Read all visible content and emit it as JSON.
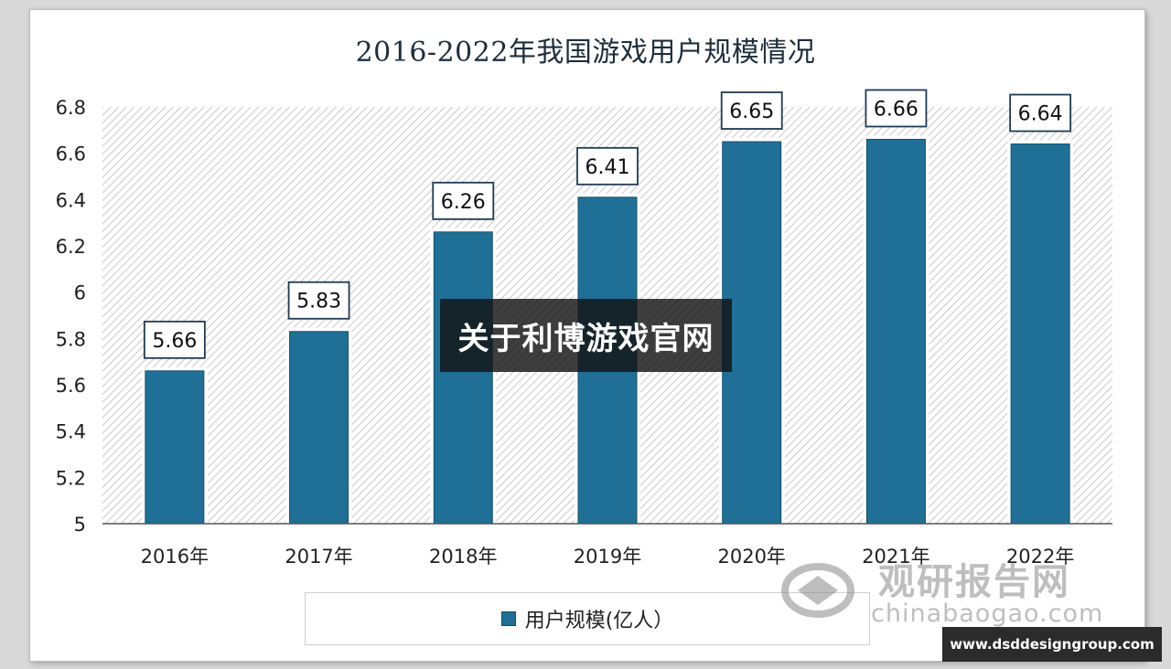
{
  "chart_data": {
    "type": "bar",
    "title": "2016-2022年我国游戏用户规模情况",
    "categories": [
      "2016年",
      "2017年",
      "2018年",
      "2019年",
      "2020年",
      "2021年",
      "2022年"
    ],
    "series": [
      {
        "name": "用户规模(亿人）",
        "values": [
          5.66,
          5.83,
          6.26,
          6.41,
          6.65,
          6.66,
          6.64
        ]
      }
    ],
    "data_labels": [
      "5.66",
      "5.83",
      "6.26",
      "6.41",
      "6.65",
      "6.66",
      "6.64"
    ],
    "ylim": [
      5,
      6.8
    ],
    "yticks": [
      "5",
      "5.2",
      "5.4",
      "5.6",
      "5.8",
      "6",
      "6.2",
      "6.4",
      "6.6",
      "6.8"
    ],
    "ytick_values": [
      5,
      5.2,
      5.4,
      5.6,
      5.8,
      6,
      6.2,
      6.4,
      6.6,
      6.8
    ],
    "legend_position": "bottom",
    "bar_color": "#1f6f96",
    "grid": false
  },
  "overlay": {
    "banner_text": "关于利博游戏官网"
  },
  "watermark": {
    "cn": "观研报告网",
    "en": "chinabaogao.com"
  },
  "site_tag": "www.dsddesigngroup.com"
}
